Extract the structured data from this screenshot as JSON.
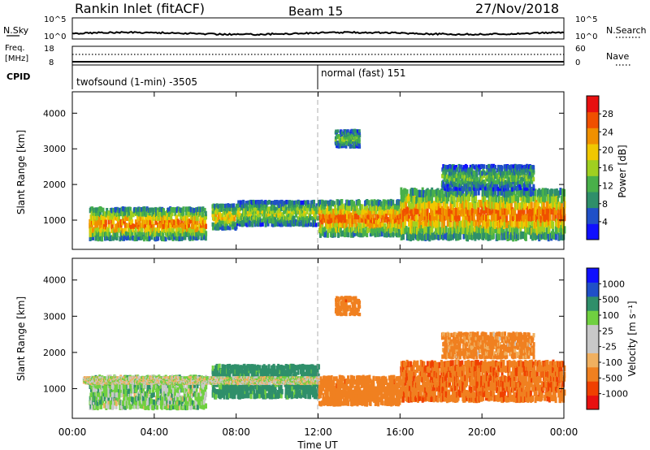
{
  "header": {
    "station": "Rankin Inlet (fitACF)",
    "beam": "Beam 15",
    "date": "27/Nov/2018"
  },
  "status_panels": {
    "nsky_label": "N.Sky",
    "nsky_ticks": [
      "10^5",
      "10^0"
    ],
    "nsearch_label": "N.Search",
    "nsearch_ticks": [
      "10^5",
      "10^0"
    ],
    "freq_label": "Freq.",
    "freq_unit": "[MHz]",
    "freq_ticks": [
      "18",
      "8"
    ],
    "nave_label": "Nave",
    "nave_ticks": [
      "60",
      "0"
    ],
    "cpid_label": "CPID",
    "modes": [
      {
        "label": "twofsound (1-min) -3505",
        "start_hour": 0
      },
      {
        "label": "normal (fast) 151",
        "start_hour": 12
      }
    ]
  },
  "colors": {
    "power": [
      "#1010ff",
      "#2050c8",
      "#2f8f6a",
      "#49b04a",
      "#a0d020",
      "#f0c800",
      "#f09000",
      "#f05000",
      "#e81010"
    ],
    "velocity": [
      "#e81010",
      "#f04000",
      "#f08020",
      "#f0b060",
      "#c8c8c8",
      "#c8c8c8",
      "#70d040",
      "#2f8f6a",
      "#2050c8",
      "#1010ff"
    ]
  },
  "chart_data": [
    {
      "type": "heatmap",
      "title": "Power",
      "xlabel": "Time UT",
      "ylabel": "Slant Range [km]",
      "x_ticks": [
        "00:00",
        "04:00",
        "08:00",
        "12:00",
        "16:00",
        "20:00",
        "00:00"
      ],
      "xlim": [
        0,
        24
      ],
      "ylim": [
        180,
        4600
      ],
      "y_ticks": [
        "1000",
        "2000",
        "3000",
        "4000"
      ],
      "colorbar_label": "Power [dB]",
      "colorbar_ticks": [
        "4",
        "8",
        "12",
        "16",
        "20",
        "24",
        "28"
      ],
      "colorbar_range": [
        0,
        32
      ],
      "echo_bands": [
        {
          "t": [
            0.8,
            6.5
          ],
          "range": [
            400,
            1300
          ],
          "value": 26
        },
        {
          "t": [
            6.8,
            8.0
          ],
          "range": [
            700,
            1400
          ],
          "value": 22
        },
        {
          "t": [
            8.0,
            12.0
          ],
          "range": [
            800,
            1500
          ],
          "value": 18
        },
        {
          "t": [
            12.0,
            16.0
          ],
          "range": [
            500,
            1500
          ],
          "value": 27
        },
        {
          "t": [
            16.0,
            24.0
          ],
          "range": [
            400,
            1800
          ],
          "value": 27
        },
        {
          "t": [
            12.8,
            14.0
          ],
          "range": [
            3000,
            3500
          ],
          "value": 14
        },
        {
          "t": [
            18.0,
            22.5
          ],
          "range": [
            1800,
            2500
          ],
          "value": 14
        }
      ]
    },
    {
      "type": "heatmap",
      "title": "Velocity",
      "xlabel": "Time UT",
      "ylabel": "Slant Range [km]",
      "x_ticks": [
        "00:00",
        "04:00",
        "08:00",
        "12:00",
        "16:00",
        "20:00",
        "00:00"
      ],
      "xlim": [
        0,
        24
      ],
      "ylim": [
        180,
        4600
      ],
      "y_ticks": [
        "1000",
        "2000",
        "3000",
        "4000"
      ],
      "colorbar_label": "Velocity [m s⁻¹]",
      "colorbar_ticks": [
        "1000",
        "500",
        "100",
        "25",
        "-25",
        "-100",
        "-500",
        "-1000"
      ],
      "echo_bands": [
        {
          "t": [
            0.8,
            6.5
          ],
          "range": [
            400,
            1300
          ],
          "value": 50
        },
        {
          "t": [
            6.8,
            12.0
          ],
          "range": [
            700,
            1600
          ],
          "value": 200
        },
        {
          "t": [
            12.0,
            16.0
          ],
          "range": [
            500,
            1300
          ],
          "value": -300
        },
        {
          "t": [
            16.0,
            24.0
          ],
          "range": [
            600,
            1700
          ],
          "value": -400
        },
        {
          "t": [
            12.8,
            14.0
          ],
          "range": [
            3000,
            3500
          ],
          "value": -300
        },
        {
          "t": [
            18.0,
            22.5
          ],
          "range": [
            1800,
            2500
          ],
          "value": -150
        },
        {
          "t": [
            0.5,
            12.0
          ],
          "range": [
            1100,
            1300
          ],
          "value": 0
        }
      ]
    }
  ]
}
